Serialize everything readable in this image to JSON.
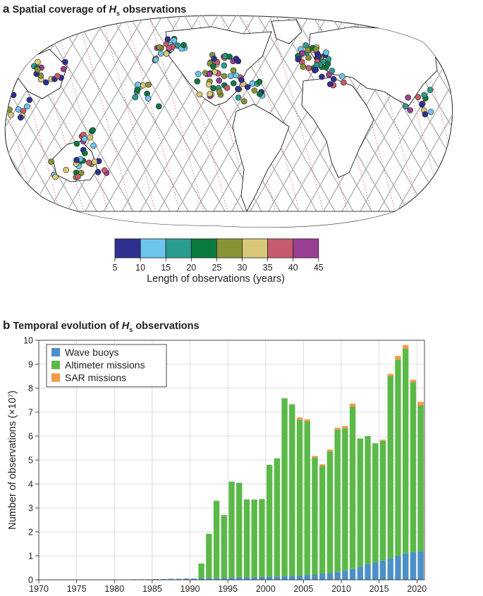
{
  "panel_a": {
    "letter": "a",
    "title_pre": "Spatial coverage of ",
    "title_var": "H",
    "title_sub": "s",
    "title_post": " observations",
    "colorbar": {
      "label": "Length of observations (years)",
      "ticks": [
        "5",
        "10",
        "15",
        "20",
        "25",
        "30",
        "35",
        "40",
        "45"
      ],
      "colors": [
        "#2e3192",
        "#6cc5ec",
        "#2a9d8f",
        "#0b7a3e",
        "#8a9236",
        "#d8c878",
        "#c85a6e",
        "#9b3f95"
      ]
    },
    "map_colors": {
      "track": "#b3b3b3",
      "sar": "#d9393f",
      "coast": "#000000"
    }
  },
  "panel_b": {
    "letter": "b",
    "title_pre": "Temporal evolution of ",
    "title_var": "H",
    "title_sub": "s",
    "title_post": " observations",
    "ylabel": "Number of observations (×10⁷)"
  },
  "chart_data": {
    "type": "bar",
    "stacked": true,
    "title": "Temporal evolution of Hs observations",
    "xlabel": "",
    "ylabel": "Number of observations (×10⁷)",
    "xlim": [
      1970,
      2021
    ],
    "ylim": [
      0,
      10
    ],
    "x_ticks": [
      1970,
      1975,
      1980,
      1985,
      1990,
      1995,
      2000,
      2005,
      2010,
      2015,
      2020
    ],
    "y_ticks": [
      0,
      1,
      2,
      3,
      4,
      5,
      6,
      7,
      8,
      9,
      10
    ],
    "grid": true,
    "legend": "top-left",
    "x": [
      1970,
      1971,
      1972,
      1973,
      1974,
      1975,
      1976,
      1977,
      1978,
      1979,
      1980,
      1981,
      1982,
      1983,
      1984,
      1985,
      1986,
      1987,
      1988,
      1989,
      1990,
      1991,
      1992,
      1993,
      1994,
      1995,
      1996,
      1997,
      1998,
      1999,
      2000,
      2001,
      2002,
      2003,
      2004,
      2005,
      2006,
      2007,
      2008,
      2009,
      2010,
      2011,
      2012,
      2013,
      2014,
      2015,
      2016,
      2017,
      2018,
      2019,
      2020
    ],
    "series": [
      {
        "name": "Wave buoys",
        "color": "#4a90c9",
        "values": [
          0,
          0,
          0,
          0,
          0,
          0,
          0,
          0,
          0,
          0.01,
          0.01,
          0.01,
          0.02,
          0.02,
          0.02,
          0.03,
          0.03,
          0.04,
          0.04,
          0.05,
          0.05,
          0.06,
          0.07,
          0.08,
          0.08,
          0.09,
          0.1,
          0.1,
          0.11,
          0.12,
          0.13,
          0.14,
          0.15,
          0.16,
          0.18,
          0.2,
          0.22,
          0.25,
          0.28,
          0.32,
          0.38,
          0.45,
          0.55,
          0.65,
          0.72,
          0.8,
          0.9,
          1.0,
          1.1,
          1.15,
          1.2
        ]
      },
      {
        "name": "Altimeter missions",
        "color": "#5ab947",
        "values": [
          0,
          0,
          0,
          0,
          0,
          0,
          0,
          0,
          0,
          0,
          0,
          0,
          0,
          0,
          0,
          0,
          0,
          0,
          0,
          0,
          0,
          0.62,
          1.85,
          3.22,
          2.62,
          4.01,
          3.95,
          3.26,
          3.24,
          3.25,
          4.67,
          4.93,
          7.43,
          7.17,
          6.5,
          6.42,
          4.88,
          4.5,
          5.08,
          5.95,
          5.94,
          6.79,
          5.35,
          5.35,
          4.98,
          5.0,
          7.6,
          8.2,
          8.55,
          7.1,
          6.08
        ]
      },
      {
        "name": "SAR missions",
        "color": "#f5994b",
        "values": [
          0,
          0,
          0,
          0,
          0,
          0,
          0,
          0,
          0,
          0,
          0,
          0,
          0,
          0,
          0,
          0,
          0,
          0,
          0,
          0,
          0,
          0,
          0,
          0,
          0,
          0,
          0,
          0,
          0,
          0,
          0,
          0,
          0,
          0,
          0.1,
          0.08,
          0.07,
          0.07,
          0.08,
          0.08,
          0.1,
          0.12,
          0,
          0,
          0,
          0.05,
          0.1,
          0.15,
          0.15,
          0.1,
          0.15
        ]
      }
    ]
  }
}
